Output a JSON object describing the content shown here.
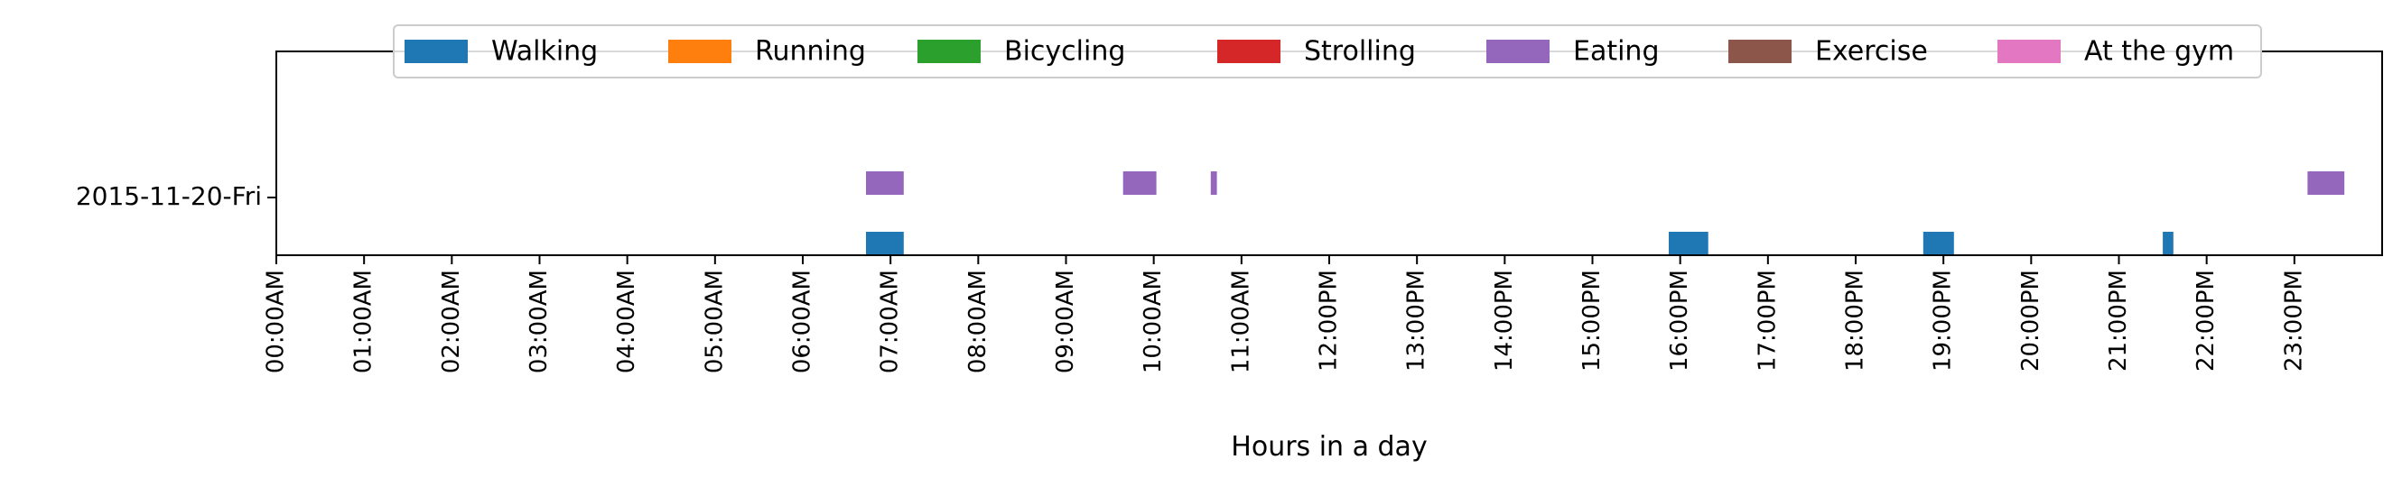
{
  "chart_data": {
    "type": "timeline",
    "xlabel": "Hours in a day",
    "ylabel": "",
    "xlim": [
      0,
      24
    ],
    "x_ticks": [
      "00:00AM",
      "01:00AM",
      "02:00AM",
      "03:00AM",
      "04:00AM",
      "05:00AM",
      "06:00AM",
      "07:00AM",
      "08:00AM",
      "09:00AM",
      "10:00AM",
      "11:00AM",
      "12:00PM",
      "13:00PM",
      "14:00PM",
      "15:00PM",
      "16:00PM",
      "17:00PM",
      "18:00PM",
      "19:00PM",
      "20:00PM",
      "21:00PM",
      "22:00PM",
      "23:00PM"
    ],
    "y_categories": [
      "2015-11-20-Fri"
    ],
    "legend_position": "top-center",
    "grid": false,
    "series": [
      {
        "name": "Walking",
        "color": "#1f77b4",
        "lane": "lower",
        "intervals": [
          [
            6.72,
            7.15
          ],
          [
            15.87,
            16.32
          ],
          [
            18.77,
            19.12
          ],
          [
            21.5,
            21.62
          ]
        ]
      },
      {
        "name": "Running",
        "color": "#ff7f0e",
        "lane": "lower",
        "intervals": []
      },
      {
        "name": "Bicycling",
        "color": "#2ca02c",
        "lane": "lower",
        "intervals": []
      },
      {
        "name": "Strolling",
        "color": "#d62728",
        "lane": "lower",
        "intervals": []
      },
      {
        "name": "Eating",
        "color": "#9467bd",
        "lane": "upper",
        "intervals": [
          [
            6.72,
            7.15
          ],
          [
            9.65,
            10.03
          ],
          [
            10.65,
            10.72
          ],
          [
            23.15,
            23.57
          ]
        ]
      },
      {
        "name": "Exercise",
        "color": "#8c564b",
        "lane": "upper",
        "intervals": []
      },
      {
        "name": "At the gym",
        "color": "#e377c2",
        "lane": "upper",
        "intervals": []
      }
    ]
  }
}
